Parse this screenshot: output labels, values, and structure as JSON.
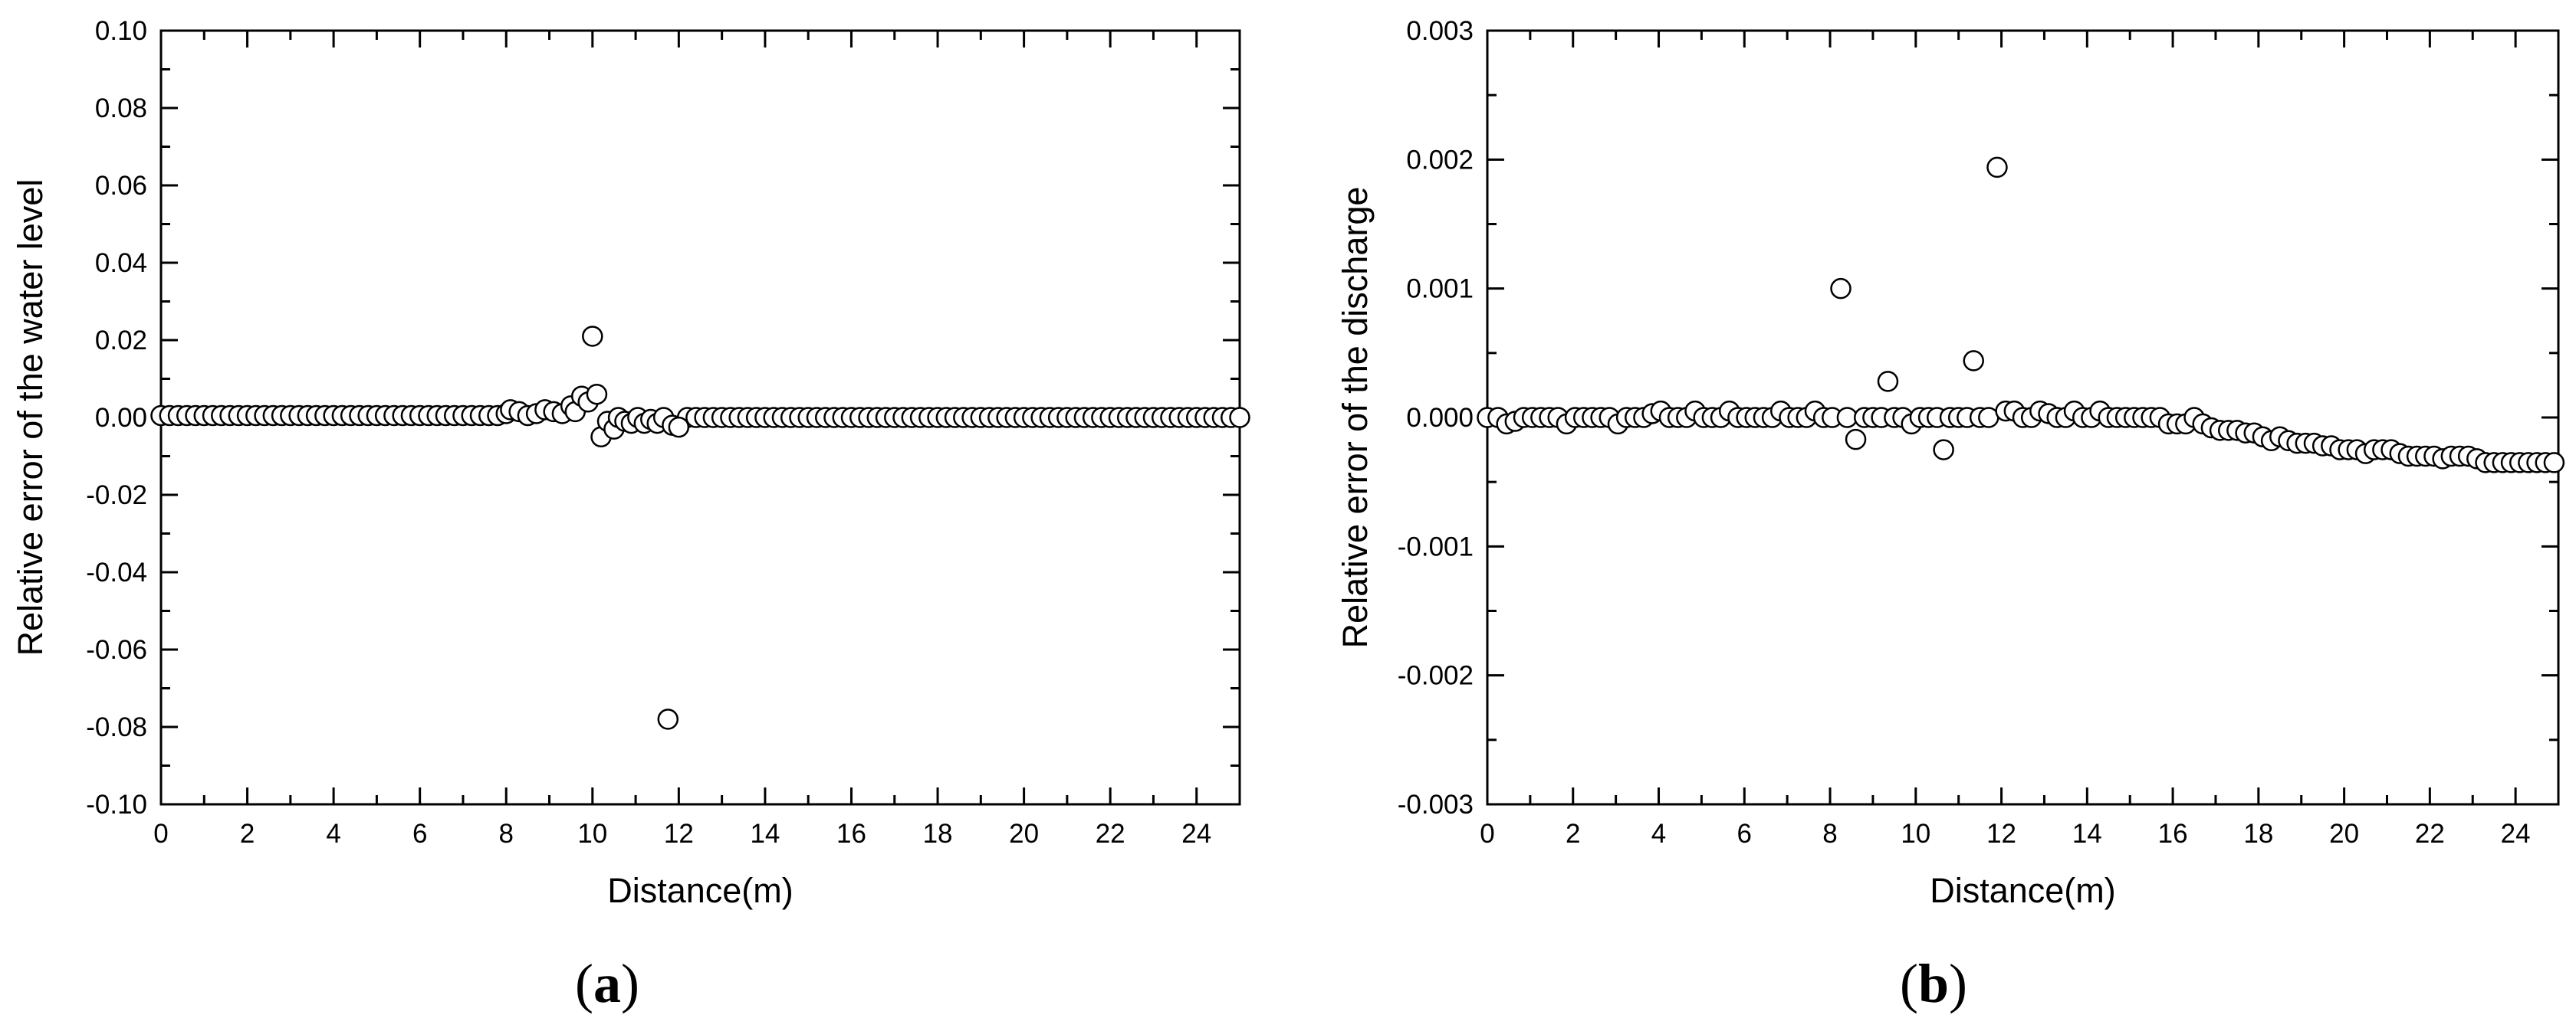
{
  "chart_data": [
    {
      "type": "scatter",
      "panel_label": {
        "open": "(",
        "letter": "a",
        "close": ")"
      },
      "title": "",
      "xlabel": "Distance(m)",
      "ylabel": "Relative error of the water level",
      "xlim": [
        0,
        25
      ],
      "ylim": [
        -0.1,
        0.1
      ],
      "xticks": [
        0,
        2,
        4,
        6,
        8,
        10,
        12,
        14,
        16,
        18,
        20,
        22,
        24
      ],
      "xtick_labels": [
        "0",
        "2",
        "4",
        "6",
        "8",
        "10",
        "12",
        "14",
        "16",
        "18",
        "20",
        "22",
        "24"
      ],
      "yticks": [
        -0.1,
        -0.08,
        -0.06,
        -0.04,
        -0.02,
        0,
        0.02,
        0.04,
        0.06,
        0.08,
        0.1
      ],
      "ytick_labels": [
        "-0.10",
        "-0.08",
        "-0.06",
        "-0.04",
        "-0.02",
        "0.00",
        "0.02",
        "0.04",
        "0.06",
        "0.08",
        "0.10"
      ],
      "marker": "open-circle",
      "grid": false,
      "series": [
        {
          "baseline": {
            "from": 0,
            "to": 7.8,
            "step": 0.2,
            "value": 0.0005
          },
          "baseline2": {
            "from": 12.2,
            "to": 25,
            "step": 0.2,
            "value": 0.0
          },
          "points": [
            [
              8.0,
              0.001
            ],
            [
              8.1,
              0.002
            ],
            [
              8.3,
              0.0015
            ],
            [
              8.5,
              0.0005
            ],
            [
              8.7,
              0.001
            ],
            [
              8.9,
              0.002
            ],
            [
              9.1,
              0.0015
            ],
            [
              9.3,
              0.001
            ],
            [
              9.5,
              0.003
            ],
            [
              9.6,
              0.0015
            ],
            [
              9.75,
              0.0055
            ],
            [
              9.9,
              0.004
            ],
            [
              10.0,
              0.021
            ],
            [
              10.1,
              0.006
            ],
            [
              10.2,
              -0.005
            ],
            [
              10.35,
              -0.001
            ],
            [
              10.5,
              -0.003
            ],
            [
              10.6,
              0.0
            ],
            [
              10.75,
              -0.001
            ],
            [
              10.9,
              -0.0015
            ],
            [
              11.05,
              0.0
            ],
            [
              11.2,
              -0.0015
            ],
            [
              11.35,
              -0.0005
            ],
            [
              11.5,
              -0.0015
            ],
            [
              11.65,
              0.0
            ],
            [
              11.75,
              -0.078
            ],
            [
              11.85,
              -0.002
            ],
            [
              12.0,
              -0.0025
            ]
          ]
        }
      ]
    },
    {
      "type": "scatter",
      "panel_label": {
        "open": "(",
        "letter": "b",
        "close": ")"
      },
      "title": "",
      "xlabel": "Distance(m)",
      "ylabel": "Relative error of the discharge",
      "xlim": [
        0,
        25
      ],
      "ylim": [
        -0.003,
        0.003
      ],
      "xticks": [
        0,
        2,
        4,
        6,
        8,
        10,
        12,
        14,
        16,
        18,
        20,
        22,
        24
      ],
      "xtick_labels": [
        "0",
        "2",
        "4",
        "6",
        "8",
        "10",
        "12",
        "14",
        "16",
        "18",
        "20",
        "22",
        "24"
      ],
      "yticks": [
        -0.003,
        -0.002,
        -0.001,
        0,
        0.001,
        0.002,
        0.003
      ],
      "ytick_labels": [
        "-0.003",
        "-0.002",
        "-0.001",
        "0.000",
        "0.001",
        "0.002",
        "0.003"
      ],
      "marker": "open-circle",
      "grid": false,
      "series": [
        {
          "points": [
            [
              0.0,
              0.0
            ],
            [
              0.25,
              0.0
            ],
            [
              0.45,
              -5e-05
            ],
            [
              0.65,
              -3e-05
            ],
            [
              0.85,
              0.0
            ],
            [
              1.05,
              0.0
            ],
            [
              1.25,
              0.0
            ],
            [
              1.45,
              0.0
            ],
            [
              1.65,
              0.0
            ],
            [
              1.85,
              -5e-05
            ],
            [
              2.05,
              0.0
            ],
            [
              2.25,
              0.0
            ],
            [
              2.45,
              0.0
            ],
            [
              2.65,
              0.0
            ],
            [
              2.85,
              0.0
            ],
            [
              3.05,
              -5e-05
            ],
            [
              3.25,
              0.0
            ],
            [
              3.45,
              0.0
            ],
            [
              3.65,
              0.0
            ],
            [
              3.85,
              3e-05
            ],
            [
              4.05,
              5e-05
            ],
            [
              4.25,
              0.0
            ],
            [
              4.45,
              0.0
            ],
            [
              4.65,
              0.0
            ],
            [
              4.85,
              5e-05
            ],
            [
              5.05,
              0.0
            ],
            [
              5.25,
              0.0
            ],
            [
              5.45,
              0.0
            ],
            [
              5.65,
              5e-05
            ],
            [
              5.85,
              0.0
            ],
            [
              6.05,
              0.0
            ],
            [
              6.25,
              0.0
            ],
            [
              6.45,
              0.0
            ],
            [
              6.65,
              0.0
            ],
            [
              6.85,
              5e-05
            ],
            [
              7.05,
              0.0
            ],
            [
              7.25,
              0.0
            ],
            [
              7.45,
              0.0
            ],
            [
              7.65,
              5e-05
            ],
            [
              7.85,
              0.0
            ],
            [
              8.05,
              0.0
            ],
            [
              8.25,
              0.001
            ],
            [
              8.4,
              0.0
            ],
            [
              8.6,
              -0.00017
            ],
            [
              8.8,
              0.0
            ],
            [
              9.0,
              0.0
            ],
            [
              9.2,
              0.0
            ],
            [
              9.35,
              0.00028
            ],
            [
              9.5,
              0.0
            ],
            [
              9.7,
              0.0
            ],
            [
              9.9,
              -5e-05
            ],
            [
              10.1,
              0.0
            ],
            [
              10.3,
              0.0
            ],
            [
              10.5,
              0.0
            ],
            [
              10.65,
              -0.00025
            ],
            [
              10.8,
              0.0
            ],
            [
              11.0,
              0.0
            ],
            [
              11.2,
              0.0
            ],
            [
              11.35,
              0.00044
            ],
            [
              11.5,
              0.0
            ],
            [
              11.7,
              0.0
            ],
            [
              11.9,
              0.00194
            ],
            [
              12.1,
              5e-05
            ],
            [
              12.3,
              5e-05
            ],
            [
              12.5,
              0.0
            ],
            [
              12.7,
              0.0
            ],
            [
              12.9,
              5e-05
            ],
            [
              13.1,
              3e-05
            ],
            [
              13.3,
              0.0
            ],
            [
              13.5,
              0.0
            ],
            [
              13.7,
              5e-05
            ],
            [
              13.9,
              0.0
            ],
            [
              14.1,
              0.0
            ],
            [
              14.3,
              5e-05
            ],
            [
              14.5,
              0.0
            ],
            [
              14.7,
              0.0
            ],
            [
              14.9,
              0.0
            ],
            [
              15.1,
              0.0
            ],
            [
              15.3,
              0.0
            ],
            [
              15.5,
              0.0
            ],
            [
              15.7,
              0.0
            ],
            [
              15.9,
              -5e-05
            ],
            [
              16.1,
              -5e-05
            ],
            [
              16.3,
              -5e-05
            ],
            [
              16.5,
              0.0
            ],
            [
              16.7,
              -5e-05
            ],
            [
              16.9,
              -8e-05
            ],
            [
              17.1,
              -0.0001
            ],
            [
              17.3,
              -0.0001
            ],
            [
              17.5,
              -0.0001
            ],
            [
              17.7,
              -0.00012
            ],
            [
              17.9,
              -0.00012
            ],
            [
              18.1,
              -0.00015
            ],
            [
              18.3,
              -0.00018
            ],
            [
              18.5,
              -0.00015
            ],
            [
              18.7,
              -0.00018
            ],
            [
              18.9,
              -0.0002
            ],
            [
              19.1,
              -0.0002
            ],
            [
              19.3,
              -0.0002
            ],
            [
              19.5,
              -0.00022
            ],
            [
              19.7,
              -0.00022
            ],
            [
              19.9,
              -0.00025
            ],
            [
              20.1,
              -0.00025
            ],
            [
              20.3,
              -0.00025
            ],
            [
              20.5,
              -0.00028
            ],
            [
              20.7,
              -0.00025
            ],
            [
              20.9,
              -0.00025
            ],
            [
              21.1,
              -0.00025
            ],
            [
              21.3,
              -0.00028
            ],
            [
              21.5,
              -0.0003
            ],
            [
              21.7,
              -0.0003
            ],
            [
              21.9,
              -0.0003
            ],
            [
              22.1,
              -0.0003
            ],
            [
              22.3,
              -0.00032
            ],
            [
              22.5,
              -0.0003
            ],
            [
              22.7,
              -0.0003
            ],
            [
              22.9,
              -0.0003
            ],
            [
              23.1,
              -0.00032
            ],
            [
              23.3,
              -0.00035
            ],
            [
              23.5,
              -0.00035
            ],
            [
              23.7,
              -0.00035
            ],
            [
              23.9,
              -0.00035
            ],
            [
              24.1,
              -0.00035
            ],
            [
              24.3,
              -0.00035
            ],
            [
              24.5,
              -0.00035
            ],
            [
              24.7,
              -0.00035
            ],
            [
              24.9,
              -0.00035
            ]
          ]
        }
      ]
    }
  ]
}
